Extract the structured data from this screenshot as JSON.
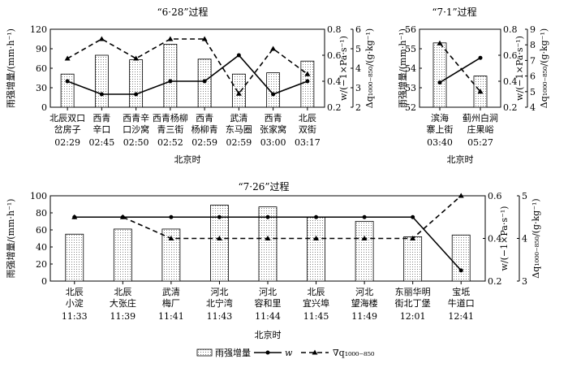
{
  "chart_data": [
    {
      "type": "bar",
      "title": "“6·28”过程",
      "xlabel": "北京时",
      "ylabel": "雨强增量/(mm·h⁻¹)",
      "y2label": "w/(−1×Pa·s⁻¹)",
      "y3label": "Δq₁₀₀₀₋₈₅₀/(g·kg⁻¹)",
      "categories": [
        {
          "line1": "北辰双口",
          "line2": "岔房子",
          "time": "02:29"
        },
        {
          "line1": "西青",
          "line2": "辛口",
          "time": "02:45"
        },
        {
          "line1": "西青辛",
          "line2": "口沙窝",
          "time": "02:50"
        },
        {
          "line1": "西青杨柳",
          "line2": "青三街",
          "time": "02:52"
        },
        {
          "line1": "西青",
          "line2": "杨柳青",
          "time": "02:59"
        },
        {
          "line1": "武清",
          "line2": "东马圈",
          "time": "02:59"
        },
        {
          "line1": "西青",
          "line2": "张家窝",
          "time": "03:00"
        },
        {
          "line1": "北辰",
          "line2": "双街",
          "time": "03:17"
        }
      ],
      "series": [
        {
          "name": "雨强增量",
          "axis": "left",
          "values": [
            51,
            80,
            73,
            97,
            74,
            51,
            53,
            71
          ]
        },
        {
          "name": "w",
          "axis": "right",
          "values": [
            0.4,
            0.3,
            0.3,
            0.4,
            0.4,
            0.6,
            0.3,
            0.4
          ]
        },
        {
          "name": "∇q₁₀₀₀₋₈₅₀",
          "axis": "right2",
          "values": [
            4.5,
            5.5,
            4.5,
            5.5,
            5.5,
            2.7,
            5.0,
            3.7
          ]
        }
      ],
      "ylim": [
        0,
        120
      ],
      "yticks": [
        0,
        30,
        60,
        90,
        120
      ],
      "y2lim": [
        0.2,
        0.8
      ],
      "y2ticks": [
        0.2,
        0.4,
        0.6,
        0.8
      ],
      "y3lim": [
        2,
        6
      ],
      "y3ticks": [
        2,
        3,
        4,
        5,
        6
      ]
    },
    {
      "type": "bar",
      "title": "“7·1”过程",
      "xlabel": "北京时",
      "ylabel": "雨强增量/(mm·h⁻¹)",
      "y2label": "w/(−1×Pa·s⁻¹)",
      "y3label": "Δq₁₀₀₀₋₈₅₀/(g·kg⁻¹)",
      "categories": [
        {
          "line1": "滨海",
          "line2": "寨上街",
          "time": "03:40"
        },
        {
          "line1": "蓟州白涧",
          "line2": "庄果峪",
          "time": "05:27"
        }
      ],
      "series": [
        {
          "name": "雨强增量",
          "axis": "left",
          "values": [
            55.3,
            53.6
          ]
        },
        {
          "name": "w",
          "axis": "right",
          "values": [
            0.39,
            0.58
          ]
        },
        {
          "name": "∇q₁₀₀₀₋₈₅₀",
          "axis": "right2",
          "values": [
            8.1,
            5.0
          ]
        }
      ],
      "ylim": [
        52,
        56
      ],
      "yticks": [
        52,
        53,
        54,
        55,
        56
      ],
      "y2lim": [
        0.2,
        0.8
      ],
      "y2ticks": [
        0.2,
        0.4,
        0.6,
        0.8
      ],
      "y3lim": [
        4,
        9
      ],
      "y3ticks": [
        4,
        5,
        6,
        7,
        8,
        9
      ]
    },
    {
      "type": "bar",
      "title": "“7·26”过程",
      "xlabel": "北京时",
      "ylabel": "雨强增量/(mm·h⁻¹)",
      "y2label": "w/(−1×Pa·s⁻¹)",
      "y3label": "Δq₁₀₀₀₋₈₅₀/(g·kg⁻¹)",
      "categories": [
        {
          "line1": "北辰",
          "line2": "小淀",
          "time": "11:33"
        },
        {
          "line1": "北辰",
          "line2": "大张庄",
          "time": "11:39"
        },
        {
          "line1": "武清",
          "line2": "梅厂",
          "time": "11:41"
        },
        {
          "line1": "河北",
          "line2": "北宁湾",
          "time": "11:43"
        },
        {
          "line1": "河北",
          "line2": "容和里",
          "time": "11:44"
        },
        {
          "line1": "北辰",
          "line2": "宜兴埠",
          "time": "11:45"
        },
        {
          "line1": "河北",
          "line2": "望海楼",
          "time": "11:49"
        },
        {
          "line1": "东丽华明",
          "line2": "街北丁堡",
          "time": "12:01"
        },
        {
          "line1": "宝坻",
          "line2": "牛道口",
          "time": "12:41"
        }
      ],
      "series": [
        {
          "name": "雨强增量",
          "axis": "left",
          "values": [
            55,
            61,
            61,
            89,
            87,
            75,
            70,
            52,
            54
          ]
        },
        {
          "name": "w",
          "axis": "right",
          "values": [
            0.5,
            0.5,
            0.5,
            0.5,
            0.5,
            0.5,
            0.5,
            0.5,
            0.25
          ]
        },
        {
          "name": "∇q₁₀₀₀₋₈₅₀",
          "axis": "right2",
          "values": [
            4.5,
            4.5,
            4,
            4,
            4,
            4,
            4,
            4,
            5
          ]
        }
      ],
      "ylim": [
        0,
        100
      ],
      "yticks": [
        0,
        20,
        40,
        60,
        80,
        100
      ],
      "y2lim": [
        0.2,
        0.6
      ],
      "y2ticks": [
        0.2,
        0.4,
        0.6
      ],
      "y3lim": [
        3,
        5
      ],
      "y3ticks": [
        3,
        4,
        5
      ]
    }
  ],
  "legend": {
    "bar_label": "雨强增量",
    "w_label": "w",
    "q_label": "∇q₁₀₀₀₋₈₅₀"
  }
}
